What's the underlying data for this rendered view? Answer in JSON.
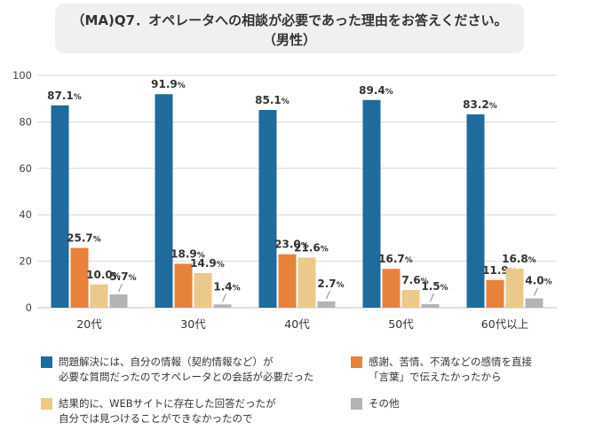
{
  "title": {
    "line1": "（MA)Q7．オペレータへの相談が必要であった理由をお答えください。",
    "line2": "（男性）"
  },
  "chart_data": {
    "type": "bar",
    "categories": [
      "20代",
      "30代",
      "40代",
      "50代",
      "60代以上"
    ],
    "ylim": [
      0,
      100
    ],
    "yticks": [
      0,
      20,
      40,
      60,
      80,
      100
    ],
    "grid": true,
    "legend_position": "bottom",
    "value_suffix": "%",
    "series": [
      {
        "name": "問題解決には、自分の情報（契約情報など）が|必要な質問だったのでオペレータとの会話が必要だった",
        "color": "#1f6b9c",
        "values": [
          87.1,
          91.9,
          85.1,
          89.4,
          83.2
        ]
      },
      {
        "name": "感謝、苦情、不満などの感情を直接|「言葉」で伝えたかったから",
        "color": "#e8823a",
        "values": [
          25.7,
          18.9,
          23.0,
          16.7,
          11.9
        ]
      },
      {
        "name": "結果的に、WEBサイトに存在した回答だったが|自分では見つけることができなかったので",
        "color": "#ecc98a",
        "values": [
          10.0,
          14.9,
          21.6,
          7.6,
          16.8
        ]
      },
      {
        "name": "その他",
        "color": "#b3b3b3",
        "values": [
          5.7,
          1.4,
          2.7,
          1.5,
          4.0
        ]
      }
    ]
  }
}
